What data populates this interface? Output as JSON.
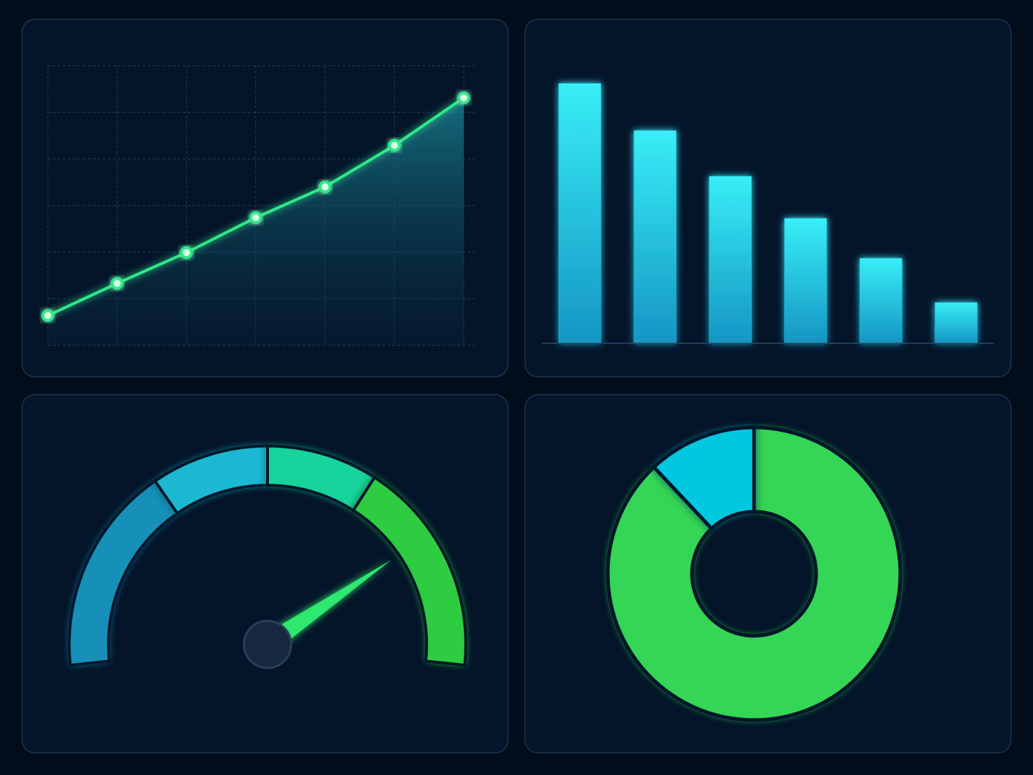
{
  "chart_data": [
    {
      "type": "line",
      "x": [
        0,
        1,
        2,
        3,
        4,
        5,
        6
      ],
      "values": [
        0.64,
        1.33,
        1.99,
        2.74,
        3.4,
        4.29,
        5.31
      ],
      "color": "#2ee88a",
      "xlim": [
        0,
        6
      ],
      "ylim": [
        0,
        6
      ],
      "xticks": [
        0,
        1,
        2,
        3,
        4,
        5,
        6
      ],
      "yticks": [
        0,
        1,
        2,
        3,
        4,
        5,
        6
      ],
      "grid": true
    },
    {
      "type": "bar",
      "categories": [
        null,
        null,
        null,
        null,
        null,
        null
      ],
      "values": [
        364,
        298,
        234,
        175,
        119,
        57
      ],
      "color": "#22d3ee",
      "ylim": [
        0,
        400
      ]
    },
    {
      "type": "gauge",
      "range": [
        0,
        100
      ],
      "value": 79,
      "bands": [
        32,
        50,
        67,
        100
      ],
      "band_colors": [
        "#1690b8",
        "#1cb8d2",
        "#16d49c",
        "#2ecc40"
      ],
      "needle_color": "#2ee870"
    },
    {
      "type": "pie",
      "values": [
        88,
        12
      ],
      "colors": [
        "#34d555",
        "#00c8e0"
      ]
    }
  ]
}
